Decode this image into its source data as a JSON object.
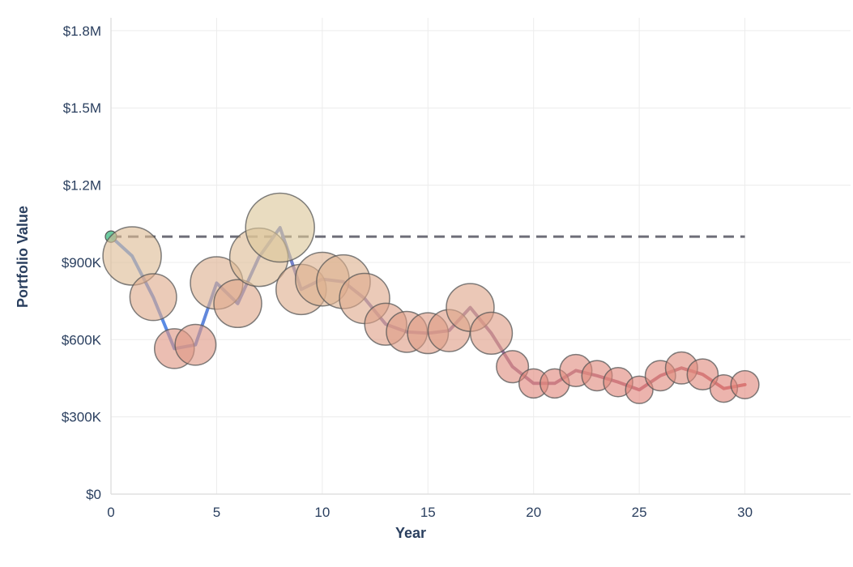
{
  "chart_data": {
    "type": "scatter",
    "title": "",
    "xlabel": "Year",
    "ylabel": "Portfolio Value",
    "xlim": [
      0,
      35
    ],
    "ylim": [
      0,
      1850000
    ],
    "grid": true,
    "x_ticks": [
      {
        "value": 0,
        "label": "0"
      },
      {
        "value": 5,
        "label": "5"
      },
      {
        "value": 10,
        "label": "10"
      },
      {
        "value": 15,
        "label": "15"
      },
      {
        "value": 20,
        "label": "20"
      },
      {
        "value": 25,
        "label": "25"
      },
      {
        "value": 30,
        "label": "30"
      }
    ],
    "y_ticks": [
      {
        "value": 0,
        "label": "$0"
      },
      {
        "value": 300000,
        "label": "$300K"
      },
      {
        "value": 600000,
        "label": "$600K"
      },
      {
        "value": 900000,
        "label": "$900K"
      },
      {
        "value": 1200000,
        "label": "$1.2M"
      },
      {
        "value": 1500000,
        "label": "$1.5M"
      },
      {
        "value": 1800000,
        "label": "$1.8M"
      }
    ],
    "reference_line": {
      "value": 1000000,
      "x_range": [
        0,
        30
      ],
      "style": "dashed",
      "color": "#6e6e78"
    },
    "line_colors": {
      "start": "#4f8ff0",
      "end": "#cf5f6a"
    },
    "marker_colors": {
      "high": "#dcc79a",
      "low": "#e0857b",
      "start": "#55c28f"
    },
    "marker_outline": "#555555",
    "series": [
      {
        "x": [
          0,
          1,
          2,
          3,
          4,
          5,
          6,
          7,
          8,
          9,
          10,
          11,
          12,
          13,
          14,
          15,
          16,
          17,
          18,
          19,
          20,
          21,
          22,
          23,
          24,
          25,
          26,
          27,
          28,
          29,
          30
        ],
        "y": [
          1000000,
          925000,
          765000,
          565000,
          580000,
          820000,
          740000,
          920000,
          1035000,
          795000,
          835000,
          825000,
          760000,
          660000,
          630000,
          625000,
          635000,
          725000,
          625000,
          495000,
          430000,
          430000,
          480000,
          460000,
          435000,
          405000,
          460000,
          490000,
          465000,
          410000,
          425000
        ],
        "size": [
          0,
          1.0,
          0.8,
          0.68,
          0.7,
          0.9,
          0.82,
          1.0,
          1.18,
          0.86,
          0.92,
          0.92,
          0.86,
          0.72,
          0.7,
          0.7,
          0.72,
          0.82,
          0.72,
          0.55,
          0.5,
          0.5,
          0.55,
          0.52,
          0.5,
          0.47,
          0.52,
          0.55,
          0.53,
          0.47,
          0.48
        ]
      }
    ]
  }
}
